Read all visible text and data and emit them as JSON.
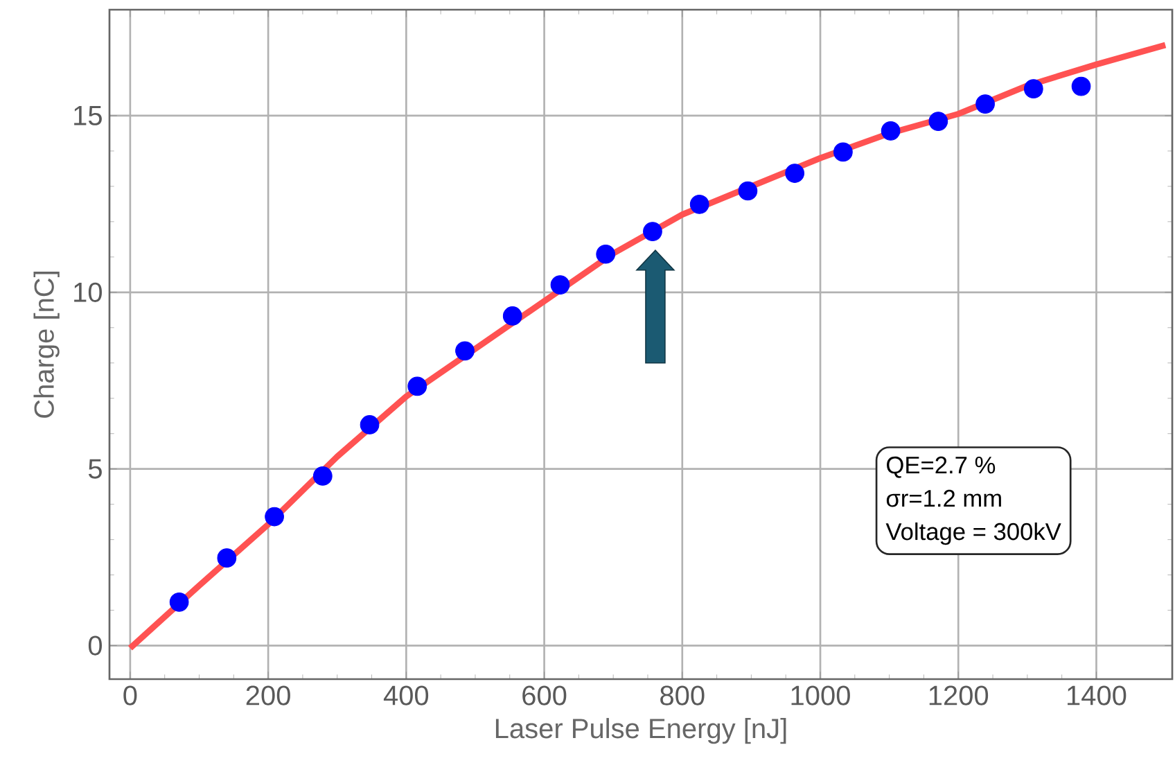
{
  "chart_data": {
    "type": "scatter",
    "xlabel": "Laser Pulse Energy [nJ]",
    "ylabel": "Charge [nC]",
    "xlim": [
      -30,
      1510
    ],
    "ylim": [
      -0.95,
      18
    ],
    "xticks": [
      0,
      200,
      400,
      600,
      800,
      1000,
      1200,
      1400
    ],
    "yticks": [
      0,
      5,
      10,
      15
    ],
    "grid": true,
    "legend": false,
    "series": [
      {
        "type": "line",
        "color": "#ff5252",
        "marker": "none",
        "line_style": "solid",
        "x": [
          0,
          100,
          200,
          300,
          400,
          500,
          600,
          700,
          800,
          900,
          1000,
          1100,
          1200,
          1300,
          1400,
          1500
        ],
        "values": [
          -0.07,
          1.7,
          3.43,
          5.35,
          7.05,
          8.4,
          9.75,
          11.1,
          12.2,
          13.0,
          13.8,
          14.5,
          15.05,
          15.85,
          16.45,
          17.0
        ]
      },
      {
        "color": "#0000ff",
        "marker": "circle",
        "x": [
          71,
          140,
          209,
          279,
          347,
          416,
          485,
          554,
          623,
          689,
          757,
          825,
          895,
          963,
          1033,
          1102,
          1171,
          1239,
          1309,
          1378
        ],
        "values": [
          1.23,
          2.48,
          3.65,
          4.8,
          6.25,
          7.34,
          8.34,
          9.33,
          10.21,
          11.08,
          11.72,
          12.49,
          12.87,
          13.37,
          13.97,
          14.57,
          14.84,
          15.33,
          15.76,
          15.83
        ]
      }
    ],
    "annotations": [
      "QE=2.7 %",
      "σr=1.2 mm",
      "Voltage = 300kV"
    ]
  }
}
